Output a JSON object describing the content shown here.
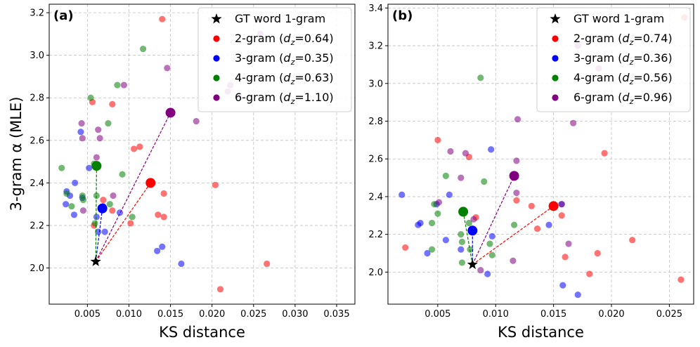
{
  "figure": {
    "ylabel": "3-gram α (MLE)"
  },
  "chart_data": [
    {
      "type": "scatter",
      "panel_label": "(a)",
      "xlabel": "KS distance",
      "ylabel": "3-gram α (MLE)",
      "xlim": [
        0.0004,
        0.0372
      ],
      "ylim": [
        1.83,
        3.24
      ],
      "xticks": [
        0.005,
        0.01,
        0.015,
        0.02,
        0.025,
        0.03,
        0.035
      ],
      "xtick_labels": [
        "0.005",
        "0.010",
        "0.015",
        "0.020",
        "0.025",
        "0.030",
        "0.035"
      ],
      "yticks": [
        2.0,
        2.2,
        2.4,
        2.6,
        2.8,
        3.0,
        3.2
      ],
      "ytick_labels": [
        "2.0",
        "2.2",
        "2.4",
        "2.6",
        "2.8",
        "3.0",
        "3.2"
      ],
      "grid": true,
      "legend_position": "top-right",
      "gt": {
        "name": "GT word 1-gram",
        "x": 0.006,
        "y": 2.03
      },
      "series": [
        {
          "name": "2-gram",
          "dz": "0.64",
          "color": "#ff0000",
          "centroid": {
            "x": 0.0126,
            "y": 2.4
          },
          "points": [
            [
              0.014,
              3.17
            ],
            [
              0.0056,
              2.78
            ],
            [
              0.008,
              2.77
            ],
            [
              0.0106,
              2.56
            ],
            [
              0.0113,
              2.57
            ],
            [
              0.0204,
              2.39
            ],
            [
              0.0142,
              2.35
            ],
            [
              0.0069,
              2.32
            ],
            [
              0.008,
              2.27
            ],
            [
              0.0102,
              2.21
            ],
            [
              0.0135,
              2.25
            ],
            [
              0.0142,
              2.24
            ],
            [
              0.0058,
              2.2
            ],
            [
              0.0266,
              2.02
            ],
            [
              0.021,
              1.9
            ]
          ]
        },
        {
          "name": "3-gram",
          "dz": "0.35",
          "color": "#0000ff",
          "centroid": {
            "x": 0.0068,
            "y": 2.28
          },
          "points": [
            [
              0.0042,
              2.64
            ],
            [
              0.0052,
              2.47
            ],
            [
              0.0025,
              2.36
            ],
            [
              0.0029,
              2.34
            ],
            [
              0.0035,
              2.4
            ],
            [
              0.0044,
              2.33
            ],
            [
              0.0024,
              2.3
            ],
            [
              0.0034,
              2.25
            ],
            [
              0.0061,
              2.24
            ],
            [
              0.0071,
              2.17
            ],
            [
              0.0063,
              2.17
            ],
            [
              0.0089,
              2.26
            ],
            [
              0.014,
              2.1
            ],
            [
              0.0134,
              2.08
            ],
            [
              0.0163,
              2.02
            ]
          ]
        },
        {
          "name": "4-gram",
          "dz": "0.63",
          "color": "#008000",
          "centroid": {
            "x": 0.0061,
            "y": 2.48
          },
          "points": [
            [
              0.0117,
              3.03
            ],
            [
              0.0086,
              2.86
            ],
            [
              0.0054,
              2.8
            ],
            [
              0.0075,
              2.68
            ],
            [
              0.0058,
              2.49
            ],
            [
              0.0092,
              2.44
            ],
            [
              0.0019,
              2.47
            ],
            [
              0.0025,
              2.35
            ],
            [
              0.0044,
              2.34
            ],
            [
              0.0061,
              2.34
            ],
            [
              0.0031,
              2.29
            ],
            [
              0.0045,
              2.32
            ],
            [
              0.0077,
              2.3
            ],
            [
              0.0104,
              2.24
            ],
            [
              0.0059,
              2.21
            ]
          ]
        },
        {
          "name": "6-gram",
          "dz": "1.10",
          "color": "#800080",
          "centroid": {
            "x": 0.015,
            "y": 2.73
          },
          "points": [
            [
              0.0258,
              3.1
            ],
            [
              0.0146,
              2.94
            ],
            [
              0.0094,
              2.86
            ],
            [
              0.0222,
              2.86
            ],
            [
              0.0219,
              2.83
            ],
            [
              0.0181,
              2.69
            ],
            [
              0.0043,
              2.68
            ],
            [
              0.0063,
              2.65
            ],
            [
              0.0065,
              2.61
            ],
            [
              0.0044,
              2.61
            ],
            [
              0.0061,
              2.52
            ],
            [
              0.0081,
              2.34
            ],
            [
              0.0045,
              2.27
            ],
            [
              0.0069,
              2.29
            ],
            [
              0.0232,
              2.81
            ]
          ]
        }
      ]
    },
    {
      "type": "scatter",
      "panel_label": "(b)",
      "xlabel": "KS distance",
      "ylabel": "",
      "xlim": [
        0.0007,
        0.0271
      ],
      "ylim": [
        1.83,
        3.42
      ],
      "xticks": [
        0.005,
        0.01,
        0.015,
        0.02,
        0.025
      ],
      "xtick_labels": [
        "0.005",
        "0.010",
        "0.015",
        "0.020",
        "0.025"
      ],
      "yticks": [
        2.0,
        2.2,
        2.4,
        2.6,
        2.8,
        3.0,
        3.2,
        3.4
      ],
      "ytick_labels": [
        "2.0",
        "2.2",
        "2.4",
        "2.6",
        "2.8",
        "3.0",
        "3.2",
        "3.4"
      ],
      "grid": true,
      "legend_position": "top-right",
      "gt": {
        "name": "GT word 1-gram",
        "x": 0.008,
        "y": 2.04
      },
      "series": [
        {
          "name": "2-gram",
          "dz": "0.74",
          "color": "#ff0000",
          "centroid": {
            "x": 0.015,
            "y": 2.35
          },
          "points": [
            [
              0.0263,
              3.35
            ],
            [
              0.005,
              2.7
            ],
            [
              0.0077,
              2.61
            ],
            [
              0.0194,
              2.63
            ],
            [
              0.0131,
              2.35
            ],
            [
              0.0157,
              2.3
            ],
            [
              0.0136,
              2.23
            ],
            [
              0.0118,
              2.38
            ],
            [
              0.0083,
              2.29
            ],
            [
              0.0022,
              2.13
            ],
            [
              0.0218,
              2.17
            ],
            [
              0.0188,
              2.1
            ],
            [
              0.016,
              2.08
            ],
            [
              0.0181,
              1.99
            ],
            [
              0.026,
              1.96
            ]
          ]
        },
        {
          "name": "3-gram",
          "dz": "0.36",
          "color": "#0000ff",
          "centroid": {
            "x": 0.008,
            "y": 2.22
          },
          "points": [
            [
              0.0096,
              2.65
            ],
            [
              0.006,
              2.41
            ],
            [
              0.0019,
              2.41
            ],
            [
              0.0049,
              2.36
            ],
            [
              0.0035,
              2.26
            ],
            [
              0.0033,
              2.25
            ],
            [
              0.0057,
              2.17
            ],
            [
              0.0041,
              2.1
            ],
            [
              0.007,
              2.12
            ],
            [
              0.0097,
              2.19
            ],
            [
              0.0146,
              2.25
            ],
            [
              0.0157,
              2.36
            ],
            [
              0.0158,
              1.93
            ],
            [
              0.0171,
              1.88
            ],
            [
              0.0093,
              1.99
            ]
          ]
        },
        {
          "name": "4-gram",
          "dz": "0.56",
          "color": "#008000",
          "centroid": {
            "x": 0.0072,
            "y": 2.32
          },
          "points": [
            [
              0.0087,
              3.03
            ],
            [
              0.0057,
              2.51
            ],
            [
              0.009,
              2.48
            ],
            [
              0.0047,
              2.36
            ],
            [
              0.005,
              2.31
            ],
            [
              0.0045,
              2.26
            ],
            [
              0.0077,
              2.26
            ],
            [
              0.0095,
              2.15
            ],
            [
              0.0116,
              2.25
            ],
            [
              0.007,
              2.2
            ],
            [
              0.0071,
              2.16
            ],
            [
              0.0078,
              2.12
            ],
            [
              0.0097,
              2.09
            ],
            [
              0.0045,
              2.12
            ],
            [
              0.0071,
              2.05
            ]
          ]
        },
        {
          "name": "6-gram",
          "dz": "0.96",
          "color": "#800080",
          "centroid": {
            "x": 0.0116,
            "y": 2.51
          },
          "points": [
            [
              0.0171,
              3.2
            ],
            [
              0.0119,
              2.81
            ],
            [
              0.0167,
              2.79
            ],
            [
              0.0074,
              2.63
            ],
            [
              0.0061,
              2.64
            ],
            [
              0.0118,
              2.59
            ],
            [
              0.007,
              2.5
            ],
            [
              0.0118,
              2.42
            ],
            [
              0.0157,
              2.36
            ],
            [
              0.0163,
              2.15
            ],
            [
              0.0081,
              2.28
            ],
            [
              0.0051,
              2.37
            ],
            [
              0.0087,
              2.01
            ],
            [
              0.0115,
              2.06
            ],
            [
              0.0189,
              3.08
            ]
          ]
        }
      ]
    }
  ]
}
